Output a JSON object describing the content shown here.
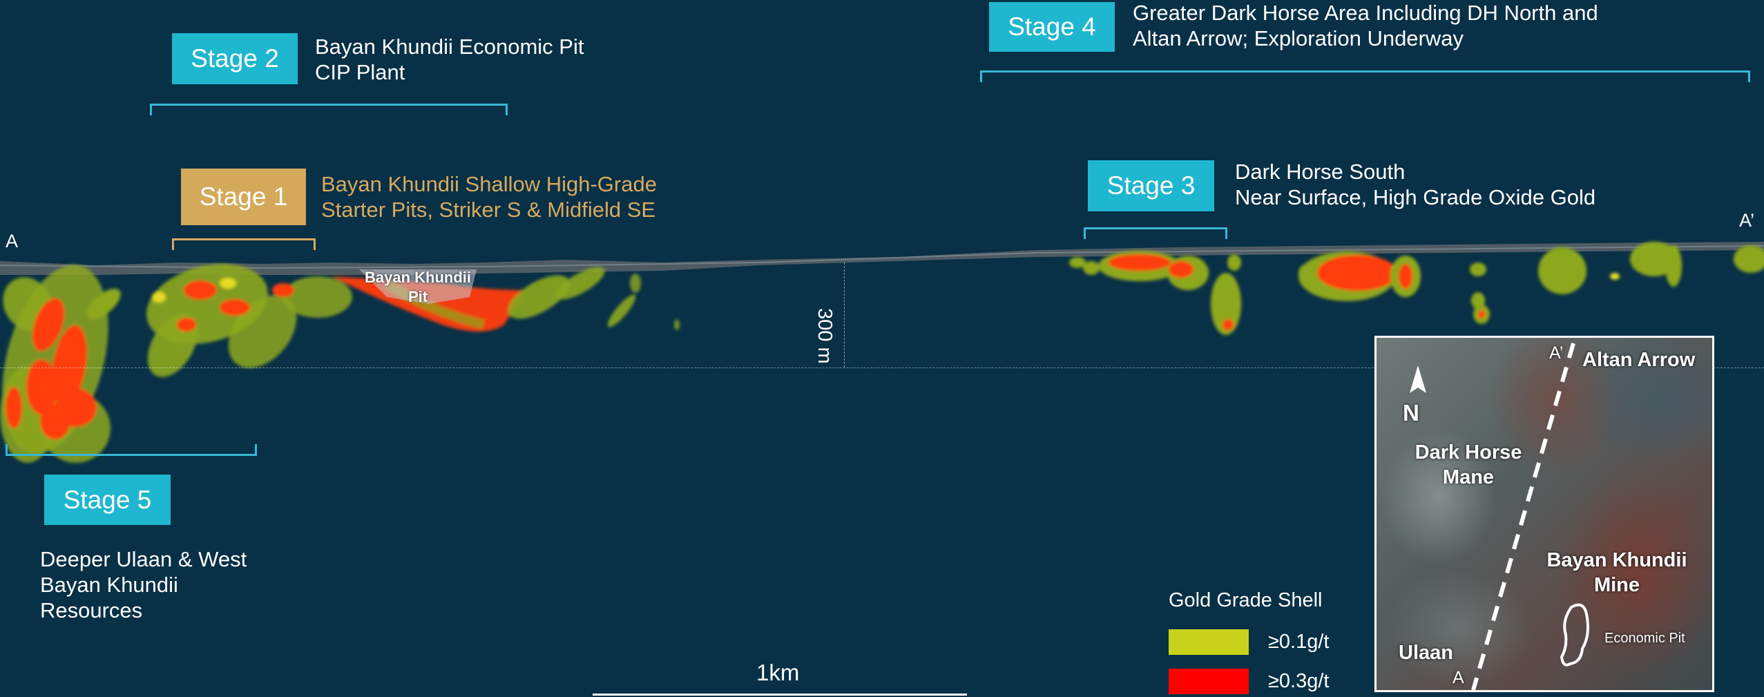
{
  "stages": {
    "s1": {
      "label": "Stage 1",
      "line1": "Bayan Khundii  Shallow High-Grade",
      "line2": "Starter Pits, Striker S & Midfield SE"
    },
    "s2": {
      "label": "Stage 2",
      "line1": "Bayan Khundii Economic Pit",
      "line2": "CIP Plant"
    },
    "s3": {
      "label": "Stage 3",
      "line1": "Dark Horse South",
      "line2": "Near Surface, High Grade Oxide Gold"
    },
    "s4": {
      "label": "Stage 4",
      "line1": "Greater Dark Horse Area Including DH North and",
      "line2": "Altan Arrow; Exploration Underway"
    },
    "s5": {
      "label": "Stage 5",
      "line1": "Deeper Ulaan & West",
      "line2": "Bayan Khundii",
      "line3": "Resources"
    }
  },
  "section": {
    "start_label": "A",
    "end_label": "A’",
    "pit_label_line1": "Bayan Khundii",
    "pit_label_line2": "Pit",
    "depth_label": "300 m",
    "scale_label": "1km"
  },
  "legend": {
    "title": "Gold Grade Shell",
    "items": [
      {
        "label": "≥0.1g/t",
        "color": "#c8d21a"
      },
      {
        "label": "≥0.3g/t",
        "color": "#ff0000"
      }
    ]
  },
  "inset_map": {
    "north": "N",
    "a_top": "A’",
    "a_bottom": "A",
    "altan_arrow": "Altan Arrow",
    "dark_horse_1": "Dark Horse",
    "dark_horse_2": "Mane",
    "bayan_1": "Bayan Khundii",
    "bayan_2": "Mine",
    "economic_pit": "Economic Pit",
    "ulaan": "Ulaan"
  },
  "colors": {
    "background": "#083047",
    "stage_cyan": "#1fb6cf",
    "stage_gold": "#d4a95a",
    "shell_low": "#9aae1e",
    "shell_high": "#ff3d0a"
  }
}
